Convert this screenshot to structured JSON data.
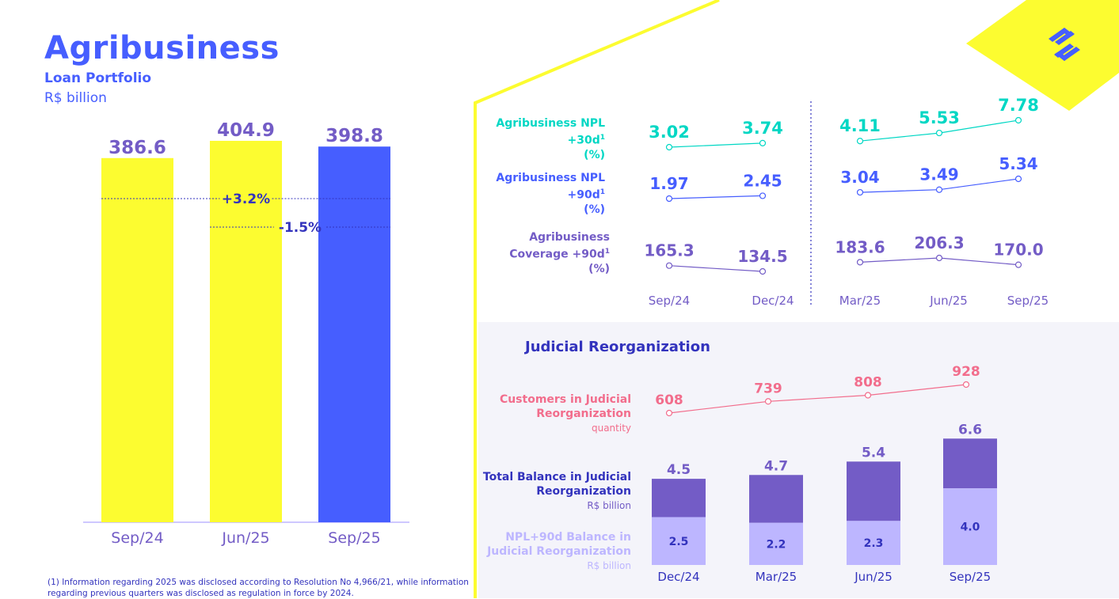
{
  "header": {
    "title": "Agribusiness",
    "subtitle": "Loan Portfolio",
    "unit": "R$ billion"
  },
  "footnote": "(1) Information regarding 2025 was disclosed according to Resolution No 4,966/21, while information regarding previous quarters was disclosed as regulation in force by 2024.",
  "colors": {
    "primary_blue": "#465EFF",
    "yellow": "#FCFC30",
    "teal": "#00D7C4",
    "purple": "#735CC6",
    "light_purple": "#BDB6FF",
    "pink": "#F26D8C",
    "navy": "#3333BD"
  },
  "icons": [
    "bank-logo-icon"
  ],
  "labels": {
    "npl30_title": "Agribusiness NPL +30d",
    "npl90_title": "Agribusiness NPL +90d",
    "coverage_title": "Agribusiness Coverage +90d",
    "sup": "1",
    "pct_unit": "(%)",
    "jr_title": "Judicial Reorganization",
    "customers_title": "Customers in Judicial Reorganization",
    "customers_sub": "quantity",
    "total_title": "Total Balance in Judicial Reorganization",
    "total_sub": "R$ billion",
    "npl_bal_title": "NPL+90d Balance in Judicial Reorganization",
    "npl_bal_sub": "R$ billion"
  },
  "chart_data": [
    {
      "type": "bar",
      "title": "Agribusiness Loan Portfolio",
      "ylabel": "R$ billion",
      "categories": [
        "Sep/24",
        "Jun/25",
        "Sep/25"
      ],
      "values": [
        386.6,
        404.9,
        398.8
      ],
      "value_labels": [
        "386.6",
        "404.9",
        "398.8"
      ],
      "ylim": [
        0,
        420
      ],
      "annotations": [
        {
          "label": "+3.2%",
          "from": "Sep/24",
          "to": "Sep/25"
        },
        {
          "label": "-1.5%",
          "from": "Jun/25",
          "to": "Sep/25"
        }
      ]
    },
    {
      "type": "line",
      "title": "Agribusiness NPL and Coverage",
      "categories": [
        "Sep/24",
        "Dec/24",
        "Mar/25",
        "Jun/25",
        "Sep/25"
      ],
      "series": [
        {
          "name": "Agribusiness NPL +30d (%)",
          "values": [
            3.02,
            3.74,
            4.11,
            5.53,
            7.78
          ],
          "value_labels": [
            "3.02",
            "3.74",
            "4.11",
            "5.53",
            "7.78"
          ]
        },
        {
          "name": "Agribusiness NPL +90d (%)",
          "values": [
            1.97,
            2.45,
            3.04,
            3.49,
            5.34
          ],
          "value_labels": [
            "1.97",
            "2.45",
            "3.04",
            "3.49",
            "5.34"
          ]
        },
        {
          "name": "Agribusiness Coverage +90d (%)",
          "values": [
            165.3,
            134.5,
            183.6,
            206.3,
            170.0
          ],
          "value_labels": [
            "165.3",
            "134.5",
            "183.6",
            "206.3",
            "170.0"
          ]
        }
      ]
    },
    {
      "type": "line",
      "title": "Customers in Judicial Reorganization",
      "ylabel": "quantity",
      "categories": [
        "Dec/24",
        "Mar/25",
        "Jun/25",
        "Sep/25"
      ],
      "values": [
        608,
        739,
        808,
        928
      ],
      "value_labels": [
        "608",
        "739",
        "808",
        "928"
      ]
    },
    {
      "type": "bar",
      "title": "Judicial Reorganization Balance",
      "ylabel": "R$ billion",
      "categories": [
        "Dec/24",
        "Mar/25",
        "Jun/25",
        "Sep/25"
      ],
      "series": [
        {
          "name": "Total Balance in Judicial Reorganization",
          "values": [
            4.5,
            4.7,
            5.4,
            6.6
          ],
          "value_labels": [
            "4.5",
            "4.7",
            "5.4",
            "6.6"
          ]
        },
        {
          "name": "NPL+90d Balance in Judicial Reorganization",
          "values": [
            2.5,
            2.2,
            2.3,
            4.0
          ],
          "value_labels": [
            "2.5",
            "2.2",
            "2.3",
            "4.0"
          ]
        }
      ]
    }
  ]
}
